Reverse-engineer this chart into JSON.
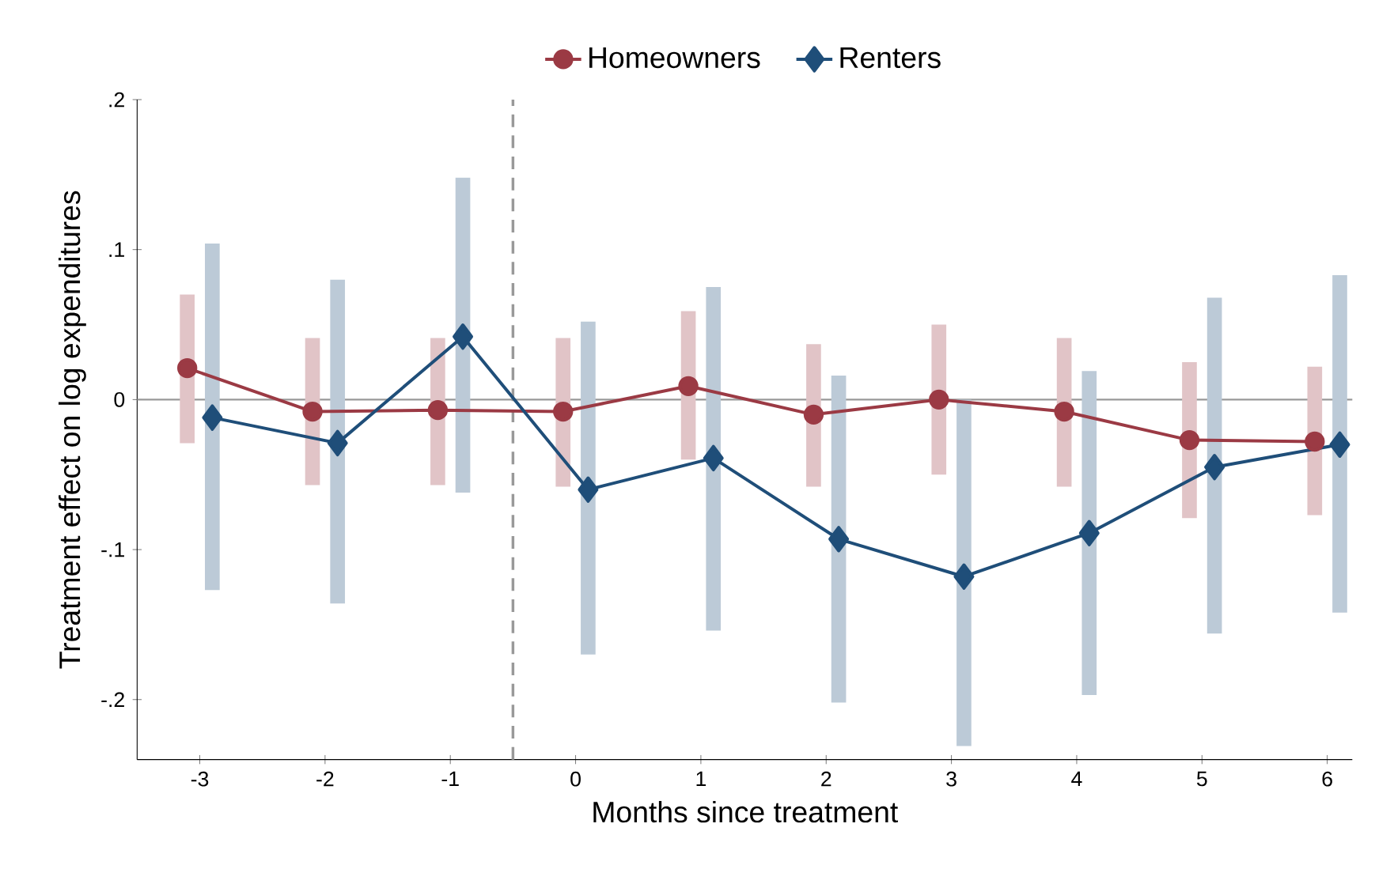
{
  "chart_data": {
    "type": "line",
    "xlabel": "Months since treatment",
    "ylabel": "Treatment effect on log expenditures",
    "xlim": [
      -3.5,
      6.2
    ],
    "xticks": [
      -3,
      -2,
      -1,
      0,
      1,
      2,
      3,
      4,
      5,
      6
    ],
    "ylim": [
      -0.24,
      0.2
    ],
    "yticks": [
      {
        "value": -0.2,
        "label": "-.2"
      },
      {
        "value": -0.1,
        "label": "-.1"
      },
      0,
      {
        "value": 0.1,
        "label": ".1"
      },
      {
        "value": 0.2,
        "label": ".2"
      }
    ],
    "legend": "top",
    "grid": false,
    "line_style": "solid",
    "ref_lines": [
      {
        "axis": "y",
        "value": 0,
        "color": "#999999",
        "line_style": "solid"
      },
      {
        "axis": "x",
        "value": -0.5,
        "color": "#999999",
        "line_style": "dashed"
      }
    ],
    "series": [
      {
        "name": "Homeowners",
        "color": "#9b3a44",
        "marker": "circle",
        "x": [
          -3.1,
          -2.1,
          -1.1,
          -0.1,
          0.9,
          1.9,
          2.9,
          3.9,
          4.9,
          5.9
        ],
        "values": [
          0.021,
          -0.008,
          -0.007,
          -0.008,
          0.009,
          -0.01,
          0,
          -0.008,
          -0.027,
          -0.028
        ],
        "errors": [
          [
            -0.029,
            0.07
          ],
          [
            -0.057,
            0.041
          ],
          [
            -0.057,
            0.041
          ],
          [
            -0.058,
            0.041
          ],
          [
            -0.04,
            0.059
          ],
          [
            -0.058,
            0.037
          ],
          [
            -0.05,
            0.05
          ],
          [
            -0.058,
            0.041
          ],
          [
            -0.079,
            0.025
          ],
          [
            -0.077,
            0.022
          ]
        ]
      },
      {
        "name": "Renters",
        "color": "#1f4e79",
        "marker": "diamond",
        "x": [
          -2.9,
          -1.9,
          -0.9,
          0.1,
          1.1,
          2.1,
          3.1,
          4.1,
          5.1,
          6.1
        ],
        "values": [
          -0.012,
          -0.029,
          0.042,
          -0.06,
          -0.039,
          -0.093,
          -0.118,
          -0.089,
          -0.045,
          -0.03
        ],
        "errors": [
          [
            -0.127,
            0.104
          ],
          [
            -0.136,
            0.08
          ],
          [
            -0.062,
            0.148
          ],
          [
            -0.17,
            0.052
          ],
          [
            -0.154,
            0.075
          ],
          [
            -0.202,
            0.016
          ],
          [
            -0.231,
            0
          ],
          [
            -0.197,
            0.019
          ],
          [
            -0.156,
            0.068
          ],
          [
            -0.142,
            0.083
          ]
        ]
      }
    ]
  }
}
